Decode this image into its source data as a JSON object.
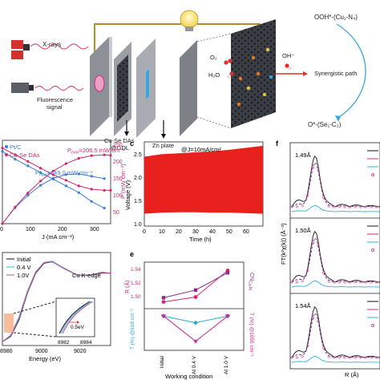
{
  "schematic": {
    "xray_label": "X-rays",
    "fluor_label_1": "Fluorescence",
    "fluor_label_2": "signal",
    "cell_label_1": "Cu-Se DAs",
    "cell_label_2": "@GDL",
    "zn_label": "Zn plate",
    "cathode_label_1": "Cu-Se DAs",
    "cathode_label_2": "@GDL",
    "o2": "O₂",
    "h2o": "H₂O",
    "oh": "OH⁻",
    "path_top": "OOH*-(Cu₁-N₄)",
    "path_mid": "Synergistic path",
    "path_bot": "O*-(Se₁-C₂)"
  },
  "panel_b": {
    "legend": [
      "Pt/C",
      "Cu-Se DAs"
    ],
    "pmax_cuse": "P",
    "pmax_cuse_sub": "max",
    "pmax_cuse_val": "=206.5 mW cm⁻²",
    "pmax_pt": "P",
    "pmax_pt_sub": "max",
    "pmax_pt_val": "=149.0 mW cm⁻²",
    "xlabel": "J (mA cm⁻²)",
    "ylabel_right": "P (mW cm⁻²)",
    "colors": {
      "pt": "#3a7fd6",
      "cuse": "#d4286e"
    }
  },
  "panel_c": {
    "label": "c",
    "annotation": "@J=10mA/cm²",
    "xlabel": "Time (h)",
    "ylabel": "Voltage (V)",
    "band_color": "#e8201e"
  },
  "panel_d": {
    "legend": [
      "Initial",
      "0.4 V",
      "1.0V"
    ],
    "edge_label": "Cu K-edge",
    "xlabel": "Energy (eV)",
    "inset_label": "0.5eV",
    "colors": {
      "initial": "#111111",
      "v04": "#29b4d9",
      "v10": "#d24a9c"
    }
  },
  "panel_e": {
    "label": "e",
    "ylabel_top_left": "R (Å)",
    "ylabel_top_right": "CN",
    "ylabel_top_right_sub": "Cu-N",
    "ylabel_bot_left": "T (%) @918 cm⁻¹",
    "ylabel_bot_right": "T (%) @1055 cm⁻¹",
    "xlabel": "Working condition",
    "colors": {
      "r": "#d4286e",
      "cn": "#8a2b8c",
      "t918": "#2aa7d8",
      "t1055": "#c62c8f"
    }
  },
  "panel_f": {
    "label": "f",
    "xlabel": "R (Å)",
    "ylabel": "FT(k²χ(k)) (Å⁻³)",
    "peaks": [
      "1.49Å",
      "1.50Å",
      "1.54Å"
    ]
  },
  "chart_data": [
    {
      "type": "line",
      "panel": "b",
      "xlabel": "J (mA cm⁻²)",
      "ylabel": "P (mW cm⁻²)",
      "xlim": [
        0,
        340
      ],
      "ylim_right": [
        0,
        250
      ],
      "x_ticks": [
        0,
        100,
        200,
        300
      ],
      "y_ticks_right": [
        0,
        50,
        100,
        150,
        200,
        250
      ],
      "series": [
        {
          "name": "Pt/C",
          "kind": "voltage",
          "x": [
            0,
            40,
            80,
            120,
            160,
            200,
            240,
            280,
            320
          ],
          "y": [
            0.95,
            0.88,
            0.82,
            0.76,
            0.7,
            0.64,
            0.58,
            0.5,
            0.44
          ]
        },
        {
          "name": "Cu-Se DAs",
          "kind": "voltage",
          "x": [
            0,
            40,
            80,
            120,
            160,
            200,
            240,
            280,
            320,
            340
          ],
          "y": [
            0.98,
            0.92,
            0.86,
            0.8,
            0.74,
            0.69,
            0.64,
            0.61,
            0.6,
            0.6
          ]
        },
        {
          "name": "Pt/C",
          "kind": "power",
          "x": [
            0,
            40,
            80,
            120,
            160,
            200,
            240,
            280,
            320
          ],
          "y": [
            0,
            48,
            85,
            115,
            136,
            147,
            149,
            142,
            135
          ]
        },
        {
          "name": "Cu-Se DAs",
          "kind": "power",
          "x": [
            0,
            40,
            80,
            120,
            160,
            200,
            240,
            280,
            320,
            340
          ],
          "y": [
            0,
            50,
            92,
            128,
            158,
            180,
            196,
            204,
            206.5,
            205
          ]
        }
      ]
    },
    {
      "type": "area",
      "panel": "c",
      "xlabel": "Time (h)",
      "ylabel": "Voltage (V)",
      "xlim": [
        0,
        70
      ],
      "ylim": [
        0.9,
        2.6
      ],
      "x_ticks": [
        0,
        10,
        20,
        30,
        40,
        50,
        60
      ],
      "y_ticks": [
        1.0,
        1.5,
        2.0,
        2.5
      ],
      "upper": {
        "x": [
          0,
          10,
          20,
          30,
          40,
          50,
          60,
          70
        ],
        "y": [
          2.3,
          2.35,
          2.37,
          2.39,
          2.41,
          2.44,
          2.48,
          2.52
        ]
      },
      "lower": {
        "x": [
          0,
          10,
          20,
          30,
          40,
          50,
          60,
          70
        ],
        "y": [
          1.15,
          1.17,
          1.18,
          1.18,
          1.17,
          1.17,
          1.16,
          1.15
        ]
      }
    },
    {
      "type": "line",
      "panel": "d",
      "xlabel": "Energy (eV)",
      "xlim": [
        8980,
        9030
      ],
      "x_ticks": [
        8980,
        9000,
        9020
      ],
      "series": [
        {
          "name": "Initial",
          "x": [
            8978,
            8982,
            8986,
            8990,
            8994,
            8998,
            9002,
            9008,
            9014,
            9020,
            9026,
            9030
          ],
          "y": [
            0.02,
            0.1,
            0.35,
            0.75,
            1.05,
            1.2,
            1.22,
            1.12,
            1.02,
            1.02,
            1.06,
            1.05
          ]
        },
        {
          "name": "0.4 V",
          "x": [
            8978,
            8982,
            8986,
            8990,
            8994,
            8998,
            9002,
            9008,
            9014,
            9020,
            9026,
            9030
          ],
          "y": [
            0.02,
            0.11,
            0.37,
            0.76,
            1.06,
            1.21,
            1.23,
            1.12,
            1.02,
            1.02,
            1.05,
            1.05
          ]
        },
        {
          "name": "1.0V",
          "x": [
            8978,
            8982,
            8986,
            8990,
            8994,
            8998,
            9002,
            9008,
            9014,
            9020,
            9026,
            9030
          ],
          "y": [
            0.02,
            0.12,
            0.39,
            0.78,
            1.07,
            1.21,
            1.22,
            1.11,
            1.02,
            1.02,
            1.05,
            1.05
          ]
        }
      ],
      "inset": {
        "x_ticks": [
          8982,
          8984
        ],
        "shift_eV": 0.5
      }
    },
    {
      "type": "line",
      "panel": "e",
      "categories": [
        "Initial",
        "At 0.4 V",
        "At 1.0 V"
      ],
      "top_left_ticks": [
        1.5,
        1.52,
        1.54
      ],
      "series": [
        {
          "name": "R",
          "values": [
            1.495,
            1.502,
            1.54
          ]
        },
        {
          "name": "CN",
          "values": [
            3.9,
            4.3,
            5.2
          ]
        },
        {
          "name": "T918",
          "values": [
            1.2,
            1.0,
            1.2
          ]
        },
        {
          "name": "T1055",
          "values": [
            1.2,
            0.45,
            1.2
          ]
        }
      ]
    },
    {
      "type": "line",
      "panel": "f",
      "xlabel": "R (Å)",
      "subpanels": [
        {
          "peak_label": "1.49Å"
        },
        {
          "peak_label": "1.50Å"
        },
        {
          "peak_label": "1.54Å"
        }
      ]
    }
  ]
}
